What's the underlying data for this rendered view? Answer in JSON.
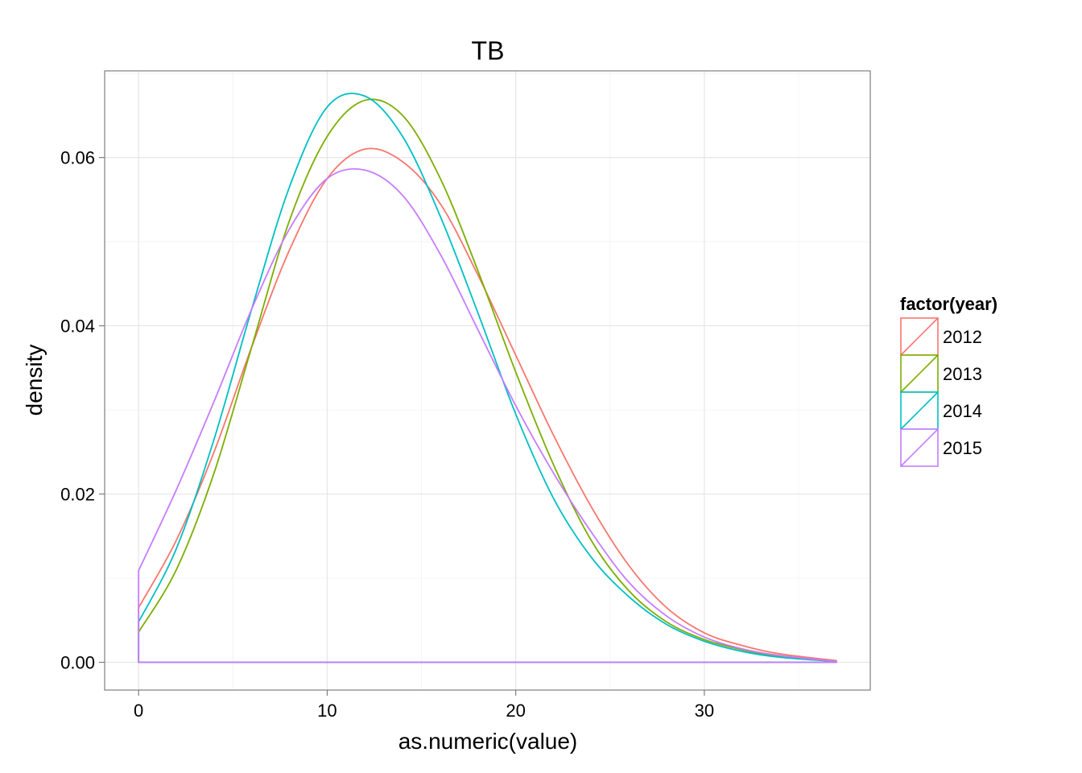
{
  "chart_data": {
    "type": "line",
    "title": "TB",
    "xlabel": "as.numeric(value)",
    "ylabel": "density",
    "xlim": [
      -1.8,
      38.8
    ],
    "ylim": [
      -0.0033,
      0.0703
    ],
    "x_ticks": [
      0,
      10,
      20,
      30
    ],
    "x_tick_labels": [
      "0",
      "10",
      "20",
      "30"
    ],
    "y_ticks": [
      0.0,
      0.02,
      0.04,
      0.06
    ],
    "y_tick_labels": [
      "0.00",
      "0.02",
      "0.04",
      "0.06"
    ],
    "grid": true,
    "legend": {
      "title": "factor(year)",
      "placement": "right"
    },
    "series": [
      {
        "name": "2012",
        "color": "#F8766D",
        "x": [
          0,
          2,
          4,
          6,
          8,
          10,
          12,
          14,
          16,
          18,
          20,
          22,
          24,
          26,
          28,
          30,
          32,
          34,
          37
        ],
        "y": [
          0.0065,
          0.0145,
          0.025,
          0.0375,
          0.049,
          0.0575,
          0.061,
          0.0595,
          0.0545,
          0.046,
          0.0365,
          0.027,
          0.0185,
          0.0115,
          0.0065,
          0.0035,
          0.002,
          0.001,
          0.0002
        ]
      },
      {
        "name": "2013",
        "color": "#7CAE00",
        "x": [
          0,
          2,
          4,
          6,
          8,
          10,
          12,
          14,
          16,
          18,
          20,
          22,
          24,
          26,
          28,
          30,
          32,
          34,
          37
        ],
        "y": [
          0.0036,
          0.011,
          0.0225,
          0.0375,
          0.0525,
          0.0625,
          0.0668,
          0.065,
          0.0575,
          0.0465,
          0.0345,
          0.0235,
          0.0145,
          0.0085,
          0.0048,
          0.0027,
          0.0015,
          0.0007,
          0.0001
        ]
      },
      {
        "name": "2014",
        "color": "#00BFC4",
        "x": [
          0,
          2,
          4,
          6,
          8,
          10,
          12,
          14,
          16,
          18,
          20,
          22,
          24,
          26,
          28,
          30,
          32,
          34,
          37
        ],
        "y": [
          0.0048,
          0.0135,
          0.0265,
          0.042,
          0.0565,
          0.066,
          0.0673,
          0.0625,
          0.053,
          0.0415,
          0.0295,
          0.0195,
          0.0125,
          0.0078,
          0.0045,
          0.0025,
          0.0013,
          0.0006,
          0.0001
        ]
      },
      {
        "name": "2015",
        "color": "#C77CFF",
        "x": [
          0,
          2,
          4,
          6,
          8,
          10,
          12,
          14,
          16,
          18,
          20,
          22,
          24,
          26,
          28,
          30,
          32,
          34,
          37
        ],
        "y": [
          0.0109,
          0.0205,
          0.031,
          0.042,
          0.0515,
          0.0575,
          0.0585,
          0.0555,
          0.0485,
          0.0395,
          0.0305,
          0.0225,
          0.0155,
          0.0095,
          0.0055,
          0.003,
          0.0016,
          0.0008,
          0.0001
        ]
      }
    ]
  }
}
